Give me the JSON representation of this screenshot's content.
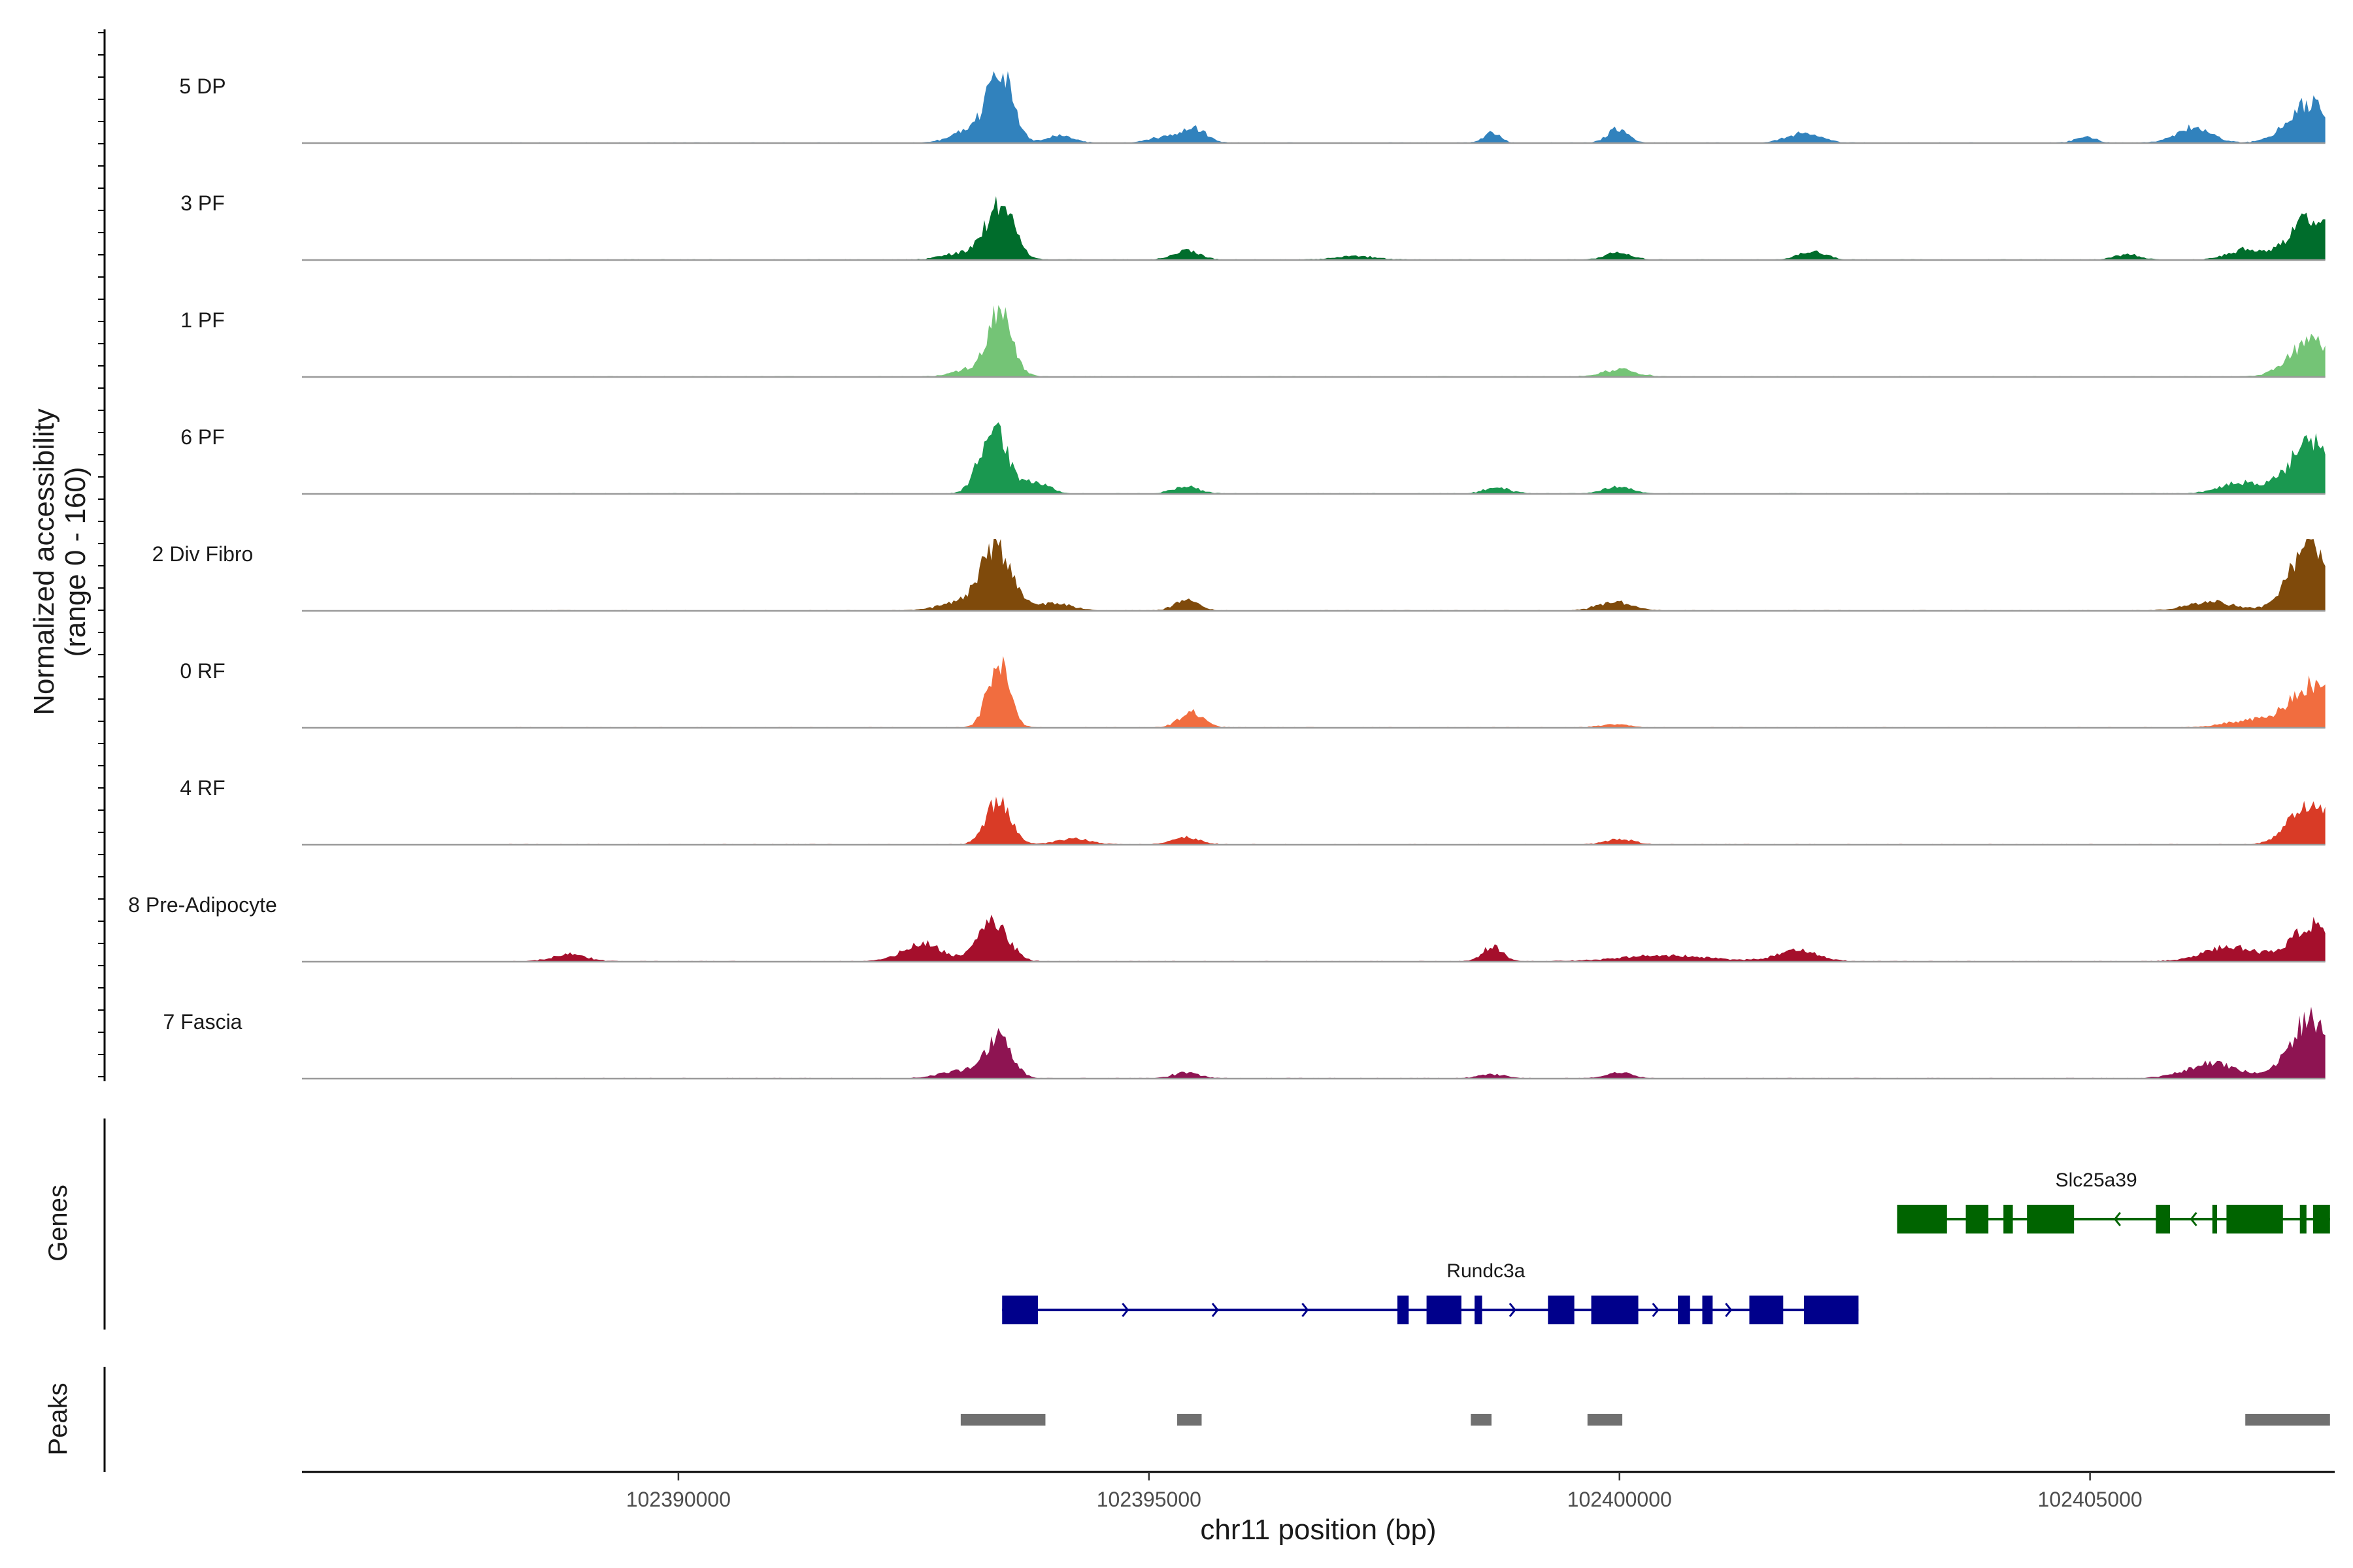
{
  "chart_data": {
    "type": "area",
    "title": "",
    "chromosome": "chr11",
    "xlabel": "chr11 position (bp)",
    "ylabel_line1": "Normalized accessibility",
    "ylabel_line2": "(range 0 - 160)",
    "xlim": [
      102386000,
      102407600
    ],
    "ylim": [
      0,
      160
    ],
    "x_ticks": [
      102390000,
      102395000,
      102400000,
      102405000
    ],
    "x_tick_labels": [
      "102390000",
      "102395000",
      "102400000",
      "102405000"
    ],
    "tracks": [
      {
        "name": "5 DP",
        "color": "#3182BD",
        "peaks": [
          [
            102393420,
            0.95,
            180
          ],
          [
            102393150,
            0.2,
            300
          ],
          [
            102394050,
            0.1,
            200
          ],
          [
            102395480,
            0.2,
            180
          ],
          [
            102395150,
            0.08,
            200
          ],
          [
            102398650,
            0.14,
            120
          ],
          [
            102399980,
            0.2,
            150
          ],
          [
            102401950,
            0.13,
            250
          ],
          [
            102404950,
            0.08,
            150
          ],
          [
            102406100,
            0.22,
            250
          ],
          [
            102407350,
            0.55,
            330
          ]
        ]
      },
      {
        "name": "3 PF",
        "color": "#006D2C",
        "peaks": [
          [
            102393420,
            0.8,
            200
          ],
          [
            102393050,
            0.1,
            300
          ],
          [
            102395400,
            0.12,
            200
          ],
          [
            102397200,
            0.05,
            300
          ],
          [
            102400000,
            0.1,
            200
          ],
          [
            102402050,
            0.12,
            200
          ],
          [
            102405400,
            0.07,
            200
          ],
          [
            102406650,
            0.14,
            250
          ],
          [
            102407350,
            0.6,
            320
          ]
        ]
      },
      {
        "name": "1 PF",
        "color": "#74C476",
        "peaks": [
          [
            102393420,
            0.9,
            180
          ],
          [
            102393100,
            0.1,
            250
          ],
          [
            102400000,
            0.1,
            250
          ],
          [
            102407350,
            0.5,
            320
          ]
        ]
      },
      {
        "name": "6 PF",
        "color": "#1A9850",
        "peaks": [
          [
            102393350,
            0.95,
            200
          ],
          [
            102393800,
            0.15,
            200
          ],
          [
            102395400,
            0.1,
            200
          ],
          [
            102398700,
            0.08,
            200
          ],
          [
            102399980,
            0.1,
            200
          ],
          [
            102406600,
            0.15,
            300
          ],
          [
            102407350,
            0.7,
            330
          ]
        ]
      },
      {
        "name": "2 Div Fibro",
        "color": "#7F4A0B",
        "peaks": [
          [
            102393380,
            0.85,
            230
          ],
          [
            102393000,
            0.12,
            300
          ],
          [
            102394000,
            0.1,
            250
          ],
          [
            102395400,
            0.14,
            180
          ],
          [
            102399950,
            0.12,
            250
          ],
          [
            102406300,
            0.12,
            350
          ],
          [
            102407350,
            0.95,
            300
          ]
        ]
      },
      {
        "name": "0 RF",
        "color": "#F16D3F",
        "peaks": [
          [
            102393400,
            0.9,
            160
          ],
          [
            102395450,
            0.22,
            180
          ],
          [
            102399950,
            0.05,
            200
          ],
          [
            102406700,
            0.1,
            350
          ],
          [
            102407350,
            0.6,
            320
          ]
        ]
      },
      {
        "name": "4 RF",
        "color": "#D93B26",
        "peaks": [
          [
            102393400,
            0.6,
            180
          ],
          [
            102394200,
            0.08,
            250
          ],
          [
            102395400,
            0.1,
            200
          ],
          [
            102400000,
            0.08,
            200
          ],
          [
            102407350,
            0.6,
            300
          ]
        ]
      },
      {
        "name": "8 Pre-Adipocyte",
        "color": "#A50F2C",
        "peaks": [
          [
            102393350,
            0.55,
            220
          ],
          [
            102392600,
            0.25,
            300
          ],
          [
            102388850,
            0.1,
            250
          ],
          [
            102398650,
            0.2,
            150
          ],
          [
            102400500,
            0.08,
            700
          ],
          [
            102401900,
            0.15,
            300
          ],
          [
            102406500,
            0.2,
            400
          ],
          [
            102407350,
            0.5,
            300
          ]
        ]
      },
      {
        "name": "7 Fascia",
        "color": "#8E1452",
        "peaks": [
          [
            102393400,
            0.55,
            200
          ],
          [
            102393000,
            0.1,
            300
          ],
          [
            102395400,
            0.08,
            200
          ],
          [
            102398650,
            0.06,
            200
          ],
          [
            102400000,
            0.08,
            200
          ],
          [
            102406300,
            0.2,
            400
          ],
          [
            102407350,
            0.85,
            300
          ]
        ]
      }
    ],
    "genes": [
      {
        "name": "Slc25a39",
        "color": "#006400",
        "strand": "-",
        "start": 102402950,
        "end": 102407550,
        "exons": [
          [
            102402950,
            102403480
          ],
          [
            102403680,
            102403920
          ],
          [
            102404080,
            102404180
          ],
          [
            102404330,
            102404830
          ],
          [
            102405700,
            102405850
          ],
          [
            102406300,
            102406350
          ],
          [
            102406450,
            102407050
          ],
          [
            102407230,
            102407300
          ],
          [
            102407370,
            102407550
          ]
        ]
      },
      {
        "name": "Rundc3a",
        "color": "#00008B",
        "strand": "+",
        "start": 102393440,
        "end": 102402540,
        "exons": [
          [
            102393440,
            102393820
          ],
          [
            102397640,
            102397760
          ],
          [
            102397950,
            102398320
          ],
          [
            102398460,
            102398540
          ],
          [
            102399240,
            102399520
          ],
          [
            102399700,
            102400200
          ],
          [
            102400620,
            102400750
          ],
          [
            102400880,
            102400990
          ],
          [
            102401380,
            102401740
          ],
          [
            102401960,
            102402540
          ]
        ]
      }
    ],
    "peak_regions": [
      [
        102393000,
        102393900
      ],
      [
        102395300,
        102395560
      ],
      [
        102398420,
        102398640
      ],
      [
        102399660,
        102400030
      ],
      [
        102406650,
        102407550
      ]
    ],
    "panel_labels": {
      "genes": "Genes",
      "peaks": "Peaks"
    }
  }
}
